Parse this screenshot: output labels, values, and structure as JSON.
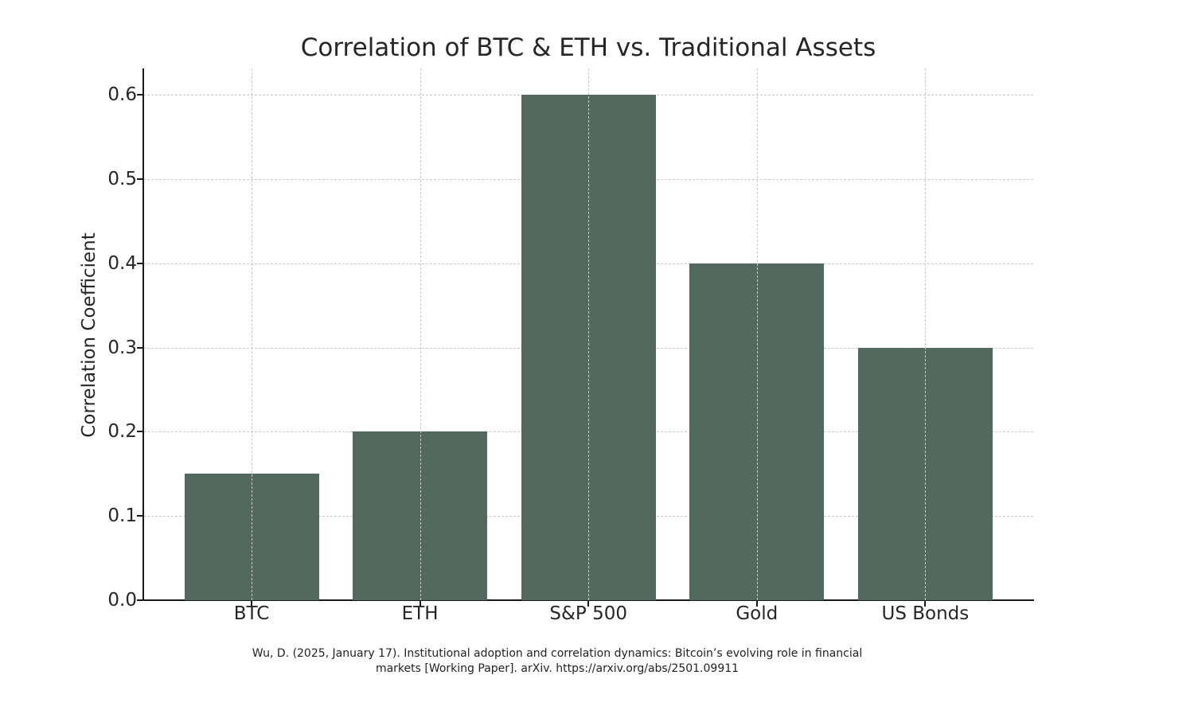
{
  "chart_data": {
    "type": "bar",
    "title": "Correlation of BTC & ETH vs. Traditional Assets",
    "xlabel": "",
    "ylabel": "Correlation Coefficient",
    "categories": [
      "BTC",
      "ETH",
      "S&P 500",
      "Gold",
      "US Bonds"
    ],
    "values": [
      0.15,
      0.2,
      0.6,
      0.4,
      0.3
    ],
    "ylim": [
      0,
      0.63
    ],
    "yticks": [
      "0.0",
      "0.1",
      "0.2",
      "0.3",
      "0.4",
      "0.5",
      "0.6"
    ],
    "grid": true,
    "legend": null,
    "bar_color": "#52695f"
  },
  "citation": {
    "line1": "Wu, D. (2025, January 17). Institutional adoption and correlation dynamics: Bitcoin’s evolving role in financial",
    "line2": "markets [Working Paper]. arXiv. https://arxiv.org/abs/2501.09911"
  }
}
